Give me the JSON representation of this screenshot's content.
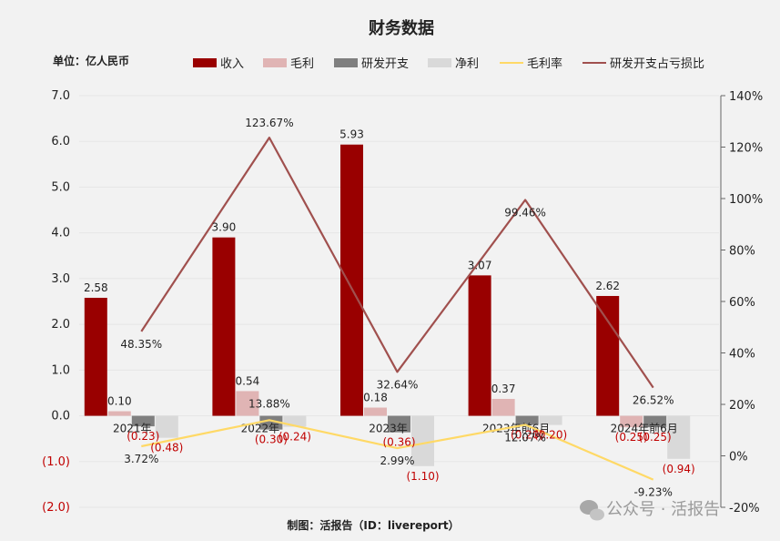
{
  "chart_data": {
    "type": "bar",
    "title": "财务数据",
    "unit_label": "单位：亿人民币",
    "categories": [
      "2021年",
      "2022年",
      "2023年",
      "2023年前6月",
      "2024年前6月"
    ],
    "series": [
      {
        "name": "收入",
        "kind": "bar",
        "axis": "left",
        "color": "#990000",
        "values": [
          2.58,
          3.9,
          5.93,
          3.07,
          2.62
        ],
        "labels": [
          "2.58",
          "3.90",
          "5.93",
          "3.07",
          "2.62"
        ]
      },
      {
        "name": "毛利",
        "kind": "bar",
        "axis": "left",
        "color": "#e0b4b4",
        "values": [
          0.1,
          0.54,
          0.18,
          0.37,
          -0.25
        ],
        "labels": [
          "0.10",
          "0.54",
          "0.18",
          "0.37",
          "(0.25)"
        ]
      },
      {
        "name": "研发开支",
        "kind": "bar",
        "axis": "left",
        "color": "#7f7f7f",
        "values": [
          -0.23,
          -0.3,
          -0.36,
          -0.2,
          -0.25
        ],
        "labels": [
          "(0.23)",
          "(0.30)",
          "(0.36)",
          "(0.20)",
          "(0.25)"
        ]
      },
      {
        "name": "净利",
        "kind": "bar",
        "axis": "left",
        "color": "#d9d9d9",
        "values": [
          -0.48,
          -0.24,
          -1.1,
          -0.2,
          -0.94
        ],
        "labels": [
          "(0.48)",
          "(0.24)",
          "(1.10)",
          "(0.20)",
          "(0.94)"
        ]
      },
      {
        "name": "毛利率",
        "kind": "line",
        "axis": "right",
        "color": "#ffd966",
        "values": [
          3.72,
          13.88,
          2.99,
          12.07,
          -9.23
        ],
        "labels": [
          "3.72%",
          "13.88%",
          "2.99%",
          "12.07%",
          "-9.23%"
        ]
      },
      {
        "name": "研发开支占亏损比",
        "kind": "line",
        "axis": "right",
        "color": "#a0504e",
        "values": [
          48.35,
          123.67,
          32.64,
          99.46,
          26.52
        ],
        "labels": [
          "48.35%",
          "123.67%",
          "32.64%",
          "99.46%",
          "26.52%"
        ]
      }
    ],
    "y_left": {
      "min": -2,
      "max": 7,
      "ticks": [
        7,
        6,
        5,
        4,
        3,
        2,
        1,
        0,
        -1,
        -2
      ],
      "tick_labels": [
        "7.0",
        "6.0",
        "5.0",
        "4.0",
        "3.0",
        "2.0",
        "1.0",
        "0.0",
        "(1.0)",
        "(2.0)"
      ]
    },
    "y_right": {
      "min": -20,
      "max": 140,
      "ticks": [
        140,
        120,
        100,
        80,
        60,
        40,
        20,
        0,
        -20
      ],
      "tick_labels": [
        "140%",
        "120%",
        "100%",
        "80%",
        "60%",
        "40%",
        "20%",
        "0%",
        "-20%"
      ]
    },
    "grid": true,
    "legend_position": "top",
    "source": "制图：活报告（ID：livereport）",
    "watermark": "公众号 · 活报告"
  }
}
